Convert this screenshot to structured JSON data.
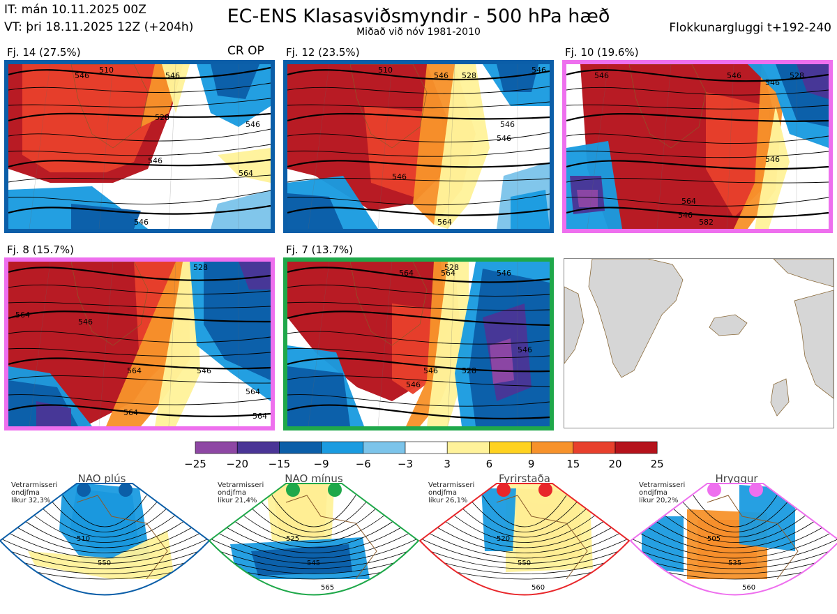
{
  "header": {
    "it_line": "IT: mán 10.11.2025 00Z",
    "vt_line": "VT: þri 18.11.2025 12Z  (+204h)",
    "title": "EC-ENS Klasasviðsmyndir - 500 hPa hæð",
    "subtitle": "Miðað við nóv 1981-2010",
    "window": "Flokkunargluggi t+192-240"
  },
  "cr_op": "CR OP",
  "panels": [
    {
      "label": "Fj. 14 (27.5%)",
      "regime": "NAO plús",
      "border_color": "#0b5ea8",
      "contour_labels": [
        "546",
        "546",
        "528",
        "546",
        "564",
        "546",
        "546",
        "510"
      ]
    },
    {
      "label": "Fj. 12 (23.5%)",
      "regime": "NAO plús",
      "border_color": "#0b5ea8",
      "contour_labels": [
        "546",
        "546",
        "546",
        "546",
        "528",
        "546",
        "564",
        "510"
      ]
    },
    {
      "label": "Fj. 10 (19.6%)",
      "regime": "Hryggur",
      "border_color": "#ee6fee",
      "contour_labels": [
        "546",
        "546",
        "546",
        "546",
        "564",
        "582",
        "546",
        "528"
      ]
    },
    {
      "label": "Fj. 8 (15.7%)",
      "regime": "Hryggur",
      "border_color": "#ee6fee",
      "contour_labels": [
        "546",
        "564",
        "564",
        "528",
        "546",
        "564",
        "564",
        "564"
      ]
    },
    {
      "label": "Fj. 7 (13.7%)",
      "regime": "NAO mínus",
      "border_color": "#1fa84a",
      "contour_labels": [
        "564",
        "546",
        "546",
        "564",
        "528",
        "546",
        "546",
        "528"
      ]
    }
  ],
  "colorbar": {
    "ticks": [
      "−25",
      "−20",
      "−15",
      "−9",
      "−6",
      "−3",
      "3",
      "6",
      "9",
      "15",
      "20",
      "25"
    ],
    "colors": [
      "#8e47a4",
      "#4a3596",
      "#0b5ea8",
      "#1a9be0",
      "#7cc4ea",
      "#ffffff",
      "#fff29a",
      "#ffd21f",
      "#f7922b",
      "#e8402c",
      "#b5121b"
    ]
  },
  "regimes": [
    {
      "name": "NAO plús",
      "text": [
        "Vetrarmisseri",
        "ondjfma",
        "líkur 32,3%"
      ],
      "color": "#0b5ea8",
      "contour_labels": [
        "510",
        "550"
      ]
    },
    {
      "name": "NAO mínus",
      "text": [
        "Vetrarmisseri",
        "ondjfma",
        "líkur 21,4%"
      ],
      "color": "#1fa84a",
      "contour_labels": [
        "525",
        "545",
        "565"
      ]
    },
    {
      "name": "Fyrirstaða",
      "text": [
        "Vetrarmisseri",
        "ondjfma",
        "líkur 26,1%"
      ],
      "color": "#e8262a",
      "contour_labels": [
        "520",
        "550",
        "560"
      ]
    },
    {
      "name": "Hryggur",
      "text": [
        "Vetrarmisseri",
        "ondjfma",
        "líkur 20,2%"
      ],
      "color": "#ee6fee",
      "contour_labels": [
        "505",
        "535",
        "560"
      ]
    }
  ]
}
